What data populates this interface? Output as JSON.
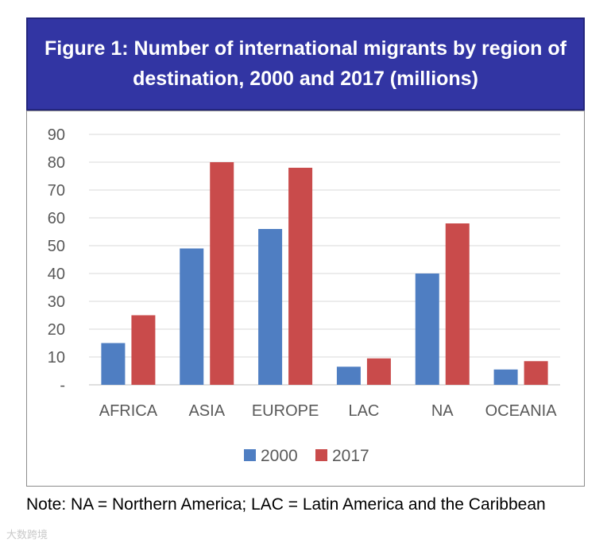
{
  "title": {
    "line1": "Figure 1:  Number of international migrants by region of",
    "line2": "destination, 2000 and 2017 (millions)"
  },
  "note": "Note: NA = Northern America; LAC = Latin America and the Caribbean",
  "watermark": "大数跨境",
  "colors": {
    "banner": "#3235a3",
    "series_2000": "#4f7ec2",
    "series_2017": "#c94b4b",
    "grid": "#d9d9d9"
  },
  "chart_data": {
    "type": "bar",
    "categories": [
      "AFRICA",
      "ASIA",
      "EUROPE",
      "LAC",
      "NA",
      "OCEANIA"
    ],
    "series": [
      {
        "name": "2000",
        "values": [
          15,
          49,
          56,
          6.5,
          40,
          5.5
        ]
      },
      {
        "name": "2017",
        "values": [
          25,
          80,
          78,
          9.5,
          58,
          8.5
        ]
      }
    ],
    "yticks": [
      "-",
      "10",
      "20",
      "30",
      "40",
      "50",
      "60",
      "70",
      "80",
      "90"
    ],
    "ylim": [
      0,
      90
    ],
    "grid": true,
    "legend": "bottom"
  }
}
